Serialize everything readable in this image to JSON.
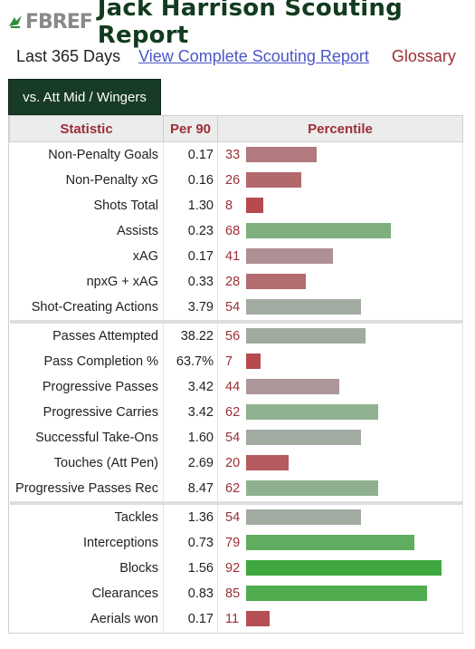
{
  "header": {
    "logo": "FBREF",
    "title": "Jack Harrison Scouting Report"
  },
  "links": {
    "period": "Last 365 Days",
    "view_report": "View Complete Scouting Report",
    "glossary": "Glossary"
  },
  "tab": {
    "label": "vs. Att Mid / Wingers"
  },
  "table": {
    "columns": [
      "Statistic",
      "Per 90",
      "Percentile"
    ],
    "rows": [
      {
        "stat": "Non-Penalty Goals",
        "per90": "0.17",
        "pct": 33,
        "color": "#b07a7e"
      },
      {
        "stat": "Non-Penalty xG",
        "per90": "0.16",
        "pct": 26,
        "color": "#b3686c"
      },
      {
        "stat": "Shots Total",
        "per90": "1.30",
        "pct": 8,
        "color": "#b64a4f"
      },
      {
        "stat": "Assists",
        "per90": "0.23",
        "pct": 68,
        "color": "#7fae7f"
      },
      {
        "stat": "xAG",
        "per90": "0.17",
        "pct": 41,
        "color": "#ae8f93"
      },
      {
        "stat": "npxG + xAG",
        "per90": "0.33",
        "pct": 28,
        "color": "#b36c70"
      },
      {
        "stat": "Shot-Creating Actions",
        "per90": "3.79",
        "pct": 54,
        "color": "#a2aba2"
      },
      {
        "stat": "Passes Attempted",
        "per90": "38.22",
        "pct": 56,
        "color": "#9fab9f",
        "sep": true
      },
      {
        "stat": "Pass Completion %",
        "per90": "63.7%",
        "pct": 7,
        "color": "#b64a4f"
      },
      {
        "stat": "Progressive Passes",
        "per90": "3.42",
        "pct": 44,
        "color": "#ad979a"
      },
      {
        "stat": "Progressive Carries",
        "per90": "3.42",
        "pct": 62,
        "color": "#8fb18f"
      },
      {
        "stat": "Successful Take-Ons",
        "per90": "1.60",
        "pct": 54,
        "color": "#a2aba2"
      },
      {
        "stat": "Touches (Att Pen)",
        "per90": "2.69",
        "pct": 20,
        "color": "#b55a5f"
      },
      {
        "stat": "Progressive Passes Rec",
        "per90": "8.47",
        "pct": 62,
        "color": "#8fb18f"
      },
      {
        "stat": "Tackles",
        "per90": "1.36",
        "pct": 54,
        "color": "#a2aba2",
        "sep": true
      },
      {
        "stat": "Interceptions",
        "per90": "0.73",
        "pct": 79,
        "color": "#60ad60"
      },
      {
        "stat": "Blocks",
        "per90": "1.56",
        "pct": 92,
        "color": "#3ea83e"
      },
      {
        "stat": "Clearances",
        "per90": "0.83",
        "pct": 85,
        "color": "#4fac4f"
      },
      {
        "stat": "Aerials won",
        "per90": "0.17",
        "pct": 11,
        "color": "#b65055"
      }
    ]
  }
}
